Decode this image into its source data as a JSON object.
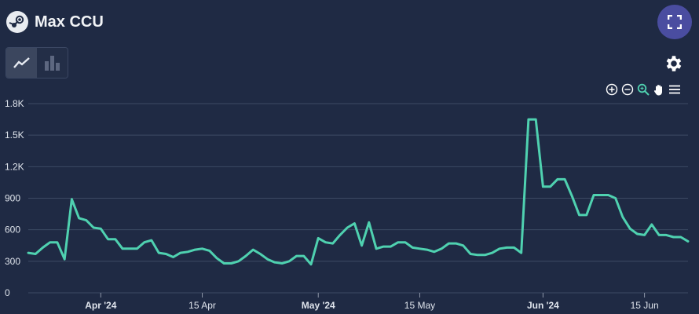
{
  "header": {
    "title": "Max CCU",
    "logo_icon": "steam-logo-icon"
  },
  "toolbar": {
    "expand_icon": "fullscreen-icon",
    "line_icon": "line-chart-icon",
    "bar_icon": "bar-chart-icon",
    "settings_icon": "gear-icon",
    "zoom_in_icon": "zoom-in-icon",
    "zoom_out_icon": "zoom-out-icon",
    "zoom_select_icon": "magnifier-icon",
    "pan_icon": "hand-icon",
    "menu_icon": "menu-icon"
  },
  "colors": {
    "background": "#1f2a44",
    "line": "#4fd1b0",
    "grid": "#3d4a63",
    "accent": "#4a4da0"
  },
  "chart_data": {
    "type": "line",
    "ylim": [
      0,
      1800
    ],
    "yticks": [
      0,
      300,
      600,
      900,
      1200,
      1500,
      1800
    ],
    "ytick_labels": [
      "0",
      "300",
      "600",
      "900",
      "1.2K",
      "1.5K",
      "1.8K"
    ],
    "x_range": [
      "2024-03-22",
      "2024-06-21"
    ],
    "xticks": [
      {
        "date": "2024-04-01",
        "label": "Apr '24",
        "bold": true
      },
      {
        "date": "2024-04-15",
        "label": "15 Apr",
        "bold": false
      },
      {
        "date": "2024-05-01",
        "label": "May '24",
        "bold": true
      },
      {
        "date": "2024-05-15",
        "label": "15 May",
        "bold": false
      },
      {
        "date": "2024-06-01",
        "label": "Jun '24",
        "bold": true
      },
      {
        "date": "2024-06-15",
        "label": "15 Jun",
        "bold": false
      }
    ],
    "grid": true,
    "series": [
      {
        "color": "#4fd1b0",
        "x": [
          "2024-03-22",
          "2024-03-23",
          "2024-03-24",
          "2024-03-25",
          "2024-03-26",
          "2024-03-27",
          "2024-03-28",
          "2024-03-29",
          "2024-03-30",
          "2024-03-31",
          "2024-04-01",
          "2024-04-02",
          "2024-04-03",
          "2024-04-04",
          "2024-04-05",
          "2024-04-06",
          "2024-04-07",
          "2024-04-08",
          "2024-04-09",
          "2024-04-10",
          "2024-04-11",
          "2024-04-12",
          "2024-04-13",
          "2024-04-14",
          "2024-04-15",
          "2024-04-16",
          "2024-04-17",
          "2024-04-18",
          "2024-04-19",
          "2024-04-20",
          "2024-04-21",
          "2024-04-22",
          "2024-04-23",
          "2024-04-24",
          "2024-04-25",
          "2024-04-26",
          "2024-04-27",
          "2024-04-28",
          "2024-04-29",
          "2024-04-30",
          "2024-05-01",
          "2024-05-02",
          "2024-05-03",
          "2024-05-04",
          "2024-05-05",
          "2024-05-06",
          "2024-05-07",
          "2024-05-08",
          "2024-05-09",
          "2024-05-10",
          "2024-05-11",
          "2024-05-12",
          "2024-05-13",
          "2024-05-14",
          "2024-05-15",
          "2024-05-16",
          "2024-05-17",
          "2024-05-18",
          "2024-05-19",
          "2024-05-20",
          "2024-05-21",
          "2024-05-22",
          "2024-05-23",
          "2024-05-24",
          "2024-05-25",
          "2024-05-26",
          "2024-05-27",
          "2024-05-28",
          "2024-05-29",
          "2024-05-30",
          "2024-05-31",
          "2024-06-01",
          "2024-06-02",
          "2024-06-03",
          "2024-06-04",
          "2024-06-05",
          "2024-06-06",
          "2024-06-07",
          "2024-06-08",
          "2024-06-09",
          "2024-06-10",
          "2024-06-11",
          "2024-06-12",
          "2024-06-13",
          "2024-06-14",
          "2024-06-15",
          "2024-06-16",
          "2024-06-17",
          "2024-06-18",
          "2024-06-19",
          "2024-06-20",
          "2024-06-21"
        ],
        "y": [
          380,
          370,
          430,
          480,
          480,
          320,
          890,
          710,
          690,
          620,
          610,
          510,
          510,
          420,
          420,
          420,
          480,
          500,
          380,
          370,
          340,
          380,
          390,
          410,
          420,
          400,
          330,
          280,
          280,
          300,
          350,
          410,
          370,
          320,
          290,
          280,
          300,
          350,
          350,
          270,
          520,
          480,
          470,
          550,
          620,
          660,
          450,
          670,
          420,
          440,
          440,
          480,
          480,
          430,
          420,
          410,
          390,
          420,
          470,
          470,
          450,
          370,
          360,
          360,
          380,
          420,
          430,
          430,
          380,
          1650,
          1650,
          1010,
          1010,
          1080,
          1080,
          920,
          740,
          740,
          930,
          930,
          930,
          900,
          720,
          610,
          560,
          550,
          650,
          550,
          550,
          530,
          530,
          490
        ]
      }
    ]
  }
}
